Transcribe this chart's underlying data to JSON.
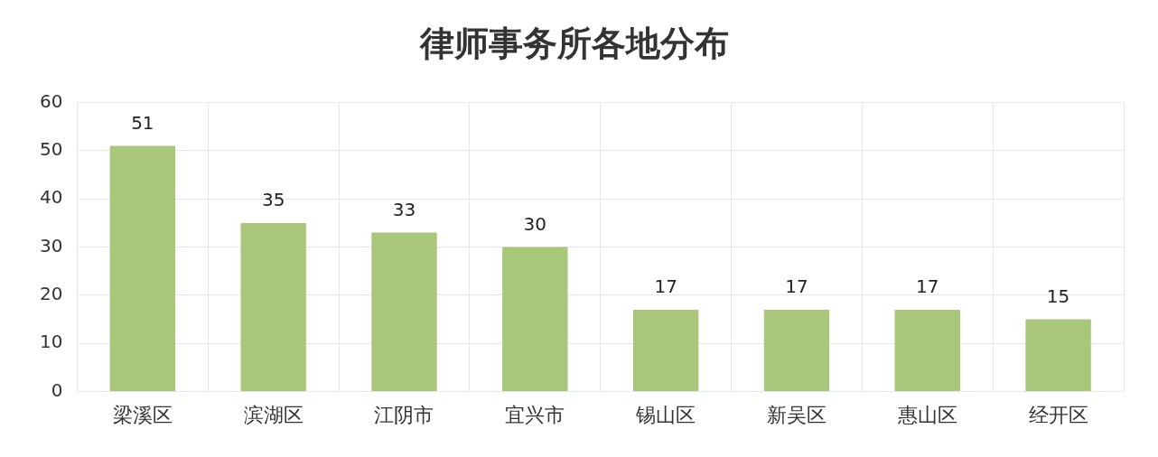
{
  "chart_data": {
    "type": "bar",
    "title": "律师事务所各地分布",
    "categories": [
      "梁溪区",
      "滨湖区",
      "江阴市",
      "宜兴市",
      "锡山区",
      "新吴区",
      "惠山区",
      "经开区"
    ],
    "values": [
      51,
      35,
      33,
      30,
      17,
      17,
      17,
      15
    ],
    "color": "#a9c77a",
    "ylim": [
      0,
      60
    ],
    "yticks": [
      0,
      10,
      20,
      30,
      40,
      50,
      60
    ],
    "grid": true,
    "data_labels": true
  }
}
